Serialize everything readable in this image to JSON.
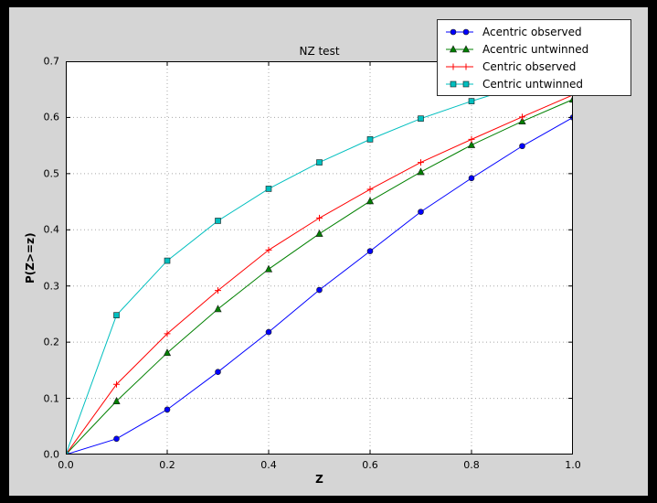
{
  "figure": {
    "outer_background": "#000000",
    "canvas_background": "#d5d5d5",
    "plot_background": "#ffffff",
    "grid_color": "#a8a8a8"
  },
  "chart_data": {
    "type": "line",
    "title": "NZ test",
    "xlabel": "Z",
    "ylabel": "P(Z>=z)",
    "xlim": [
      0.0,
      1.0
    ],
    "ylim": [
      0.0,
      0.7
    ],
    "xticks": [
      0.0,
      0.2,
      0.4,
      0.6,
      0.8,
      1.0
    ],
    "yticks": [
      0.0,
      0.1,
      0.2,
      0.3,
      0.4,
      0.5,
      0.6,
      0.7
    ],
    "grid": true,
    "grid_style": "dotted",
    "legend_position": "upper right",
    "x": [
      0.0,
      0.1,
      0.2,
      0.3,
      0.4,
      0.5,
      0.6,
      0.7,
      0.8,
      0.9,
      1.0
    ],
    "series": [
      {
        "name": "Acentric observed",
        "color": "#0000ff",
        "marker": "circle",
        "values": [
          0.0,
          0.028,
          0.08,
          0.147,
          0.218,
          0.293,
          0.362,
          0.432,
          0.492,
          0.549,
          0.6
        ]
      },
      {
        "name": "Acentric untwinned",
        "color": "#008000",
        "marker": "triangle",
        "values": [
          0.0,
          0.095,
          0.181,
          0.259,
          0.33,
          0.393,
          0.451,
          0.503,
          0.551,
          0.593,
          0.632
        ]
      },
      {
        "name": "Centric observed",
        "color": "#ff0000",
        "marker": "plus",
        "values": [
          0.0,
          0.125,
          0.215,
          0.292,
          0.364,
          0.421,
          0.472,
          0.52,
          0.561,
          0.601,
          0.64
        ]
      },
      {
        "name": "Centric untwinned",
        "color": "#00bfbf",
        "marker": "square",
        "values": [
          0.0,
          0.248,
          0.345,
          0.416,
          0.473,
          0.52,
          0.561,
          0.598,
          0.629,
          0.657,
          0.683
        ]
      }
    ]
  }
}
